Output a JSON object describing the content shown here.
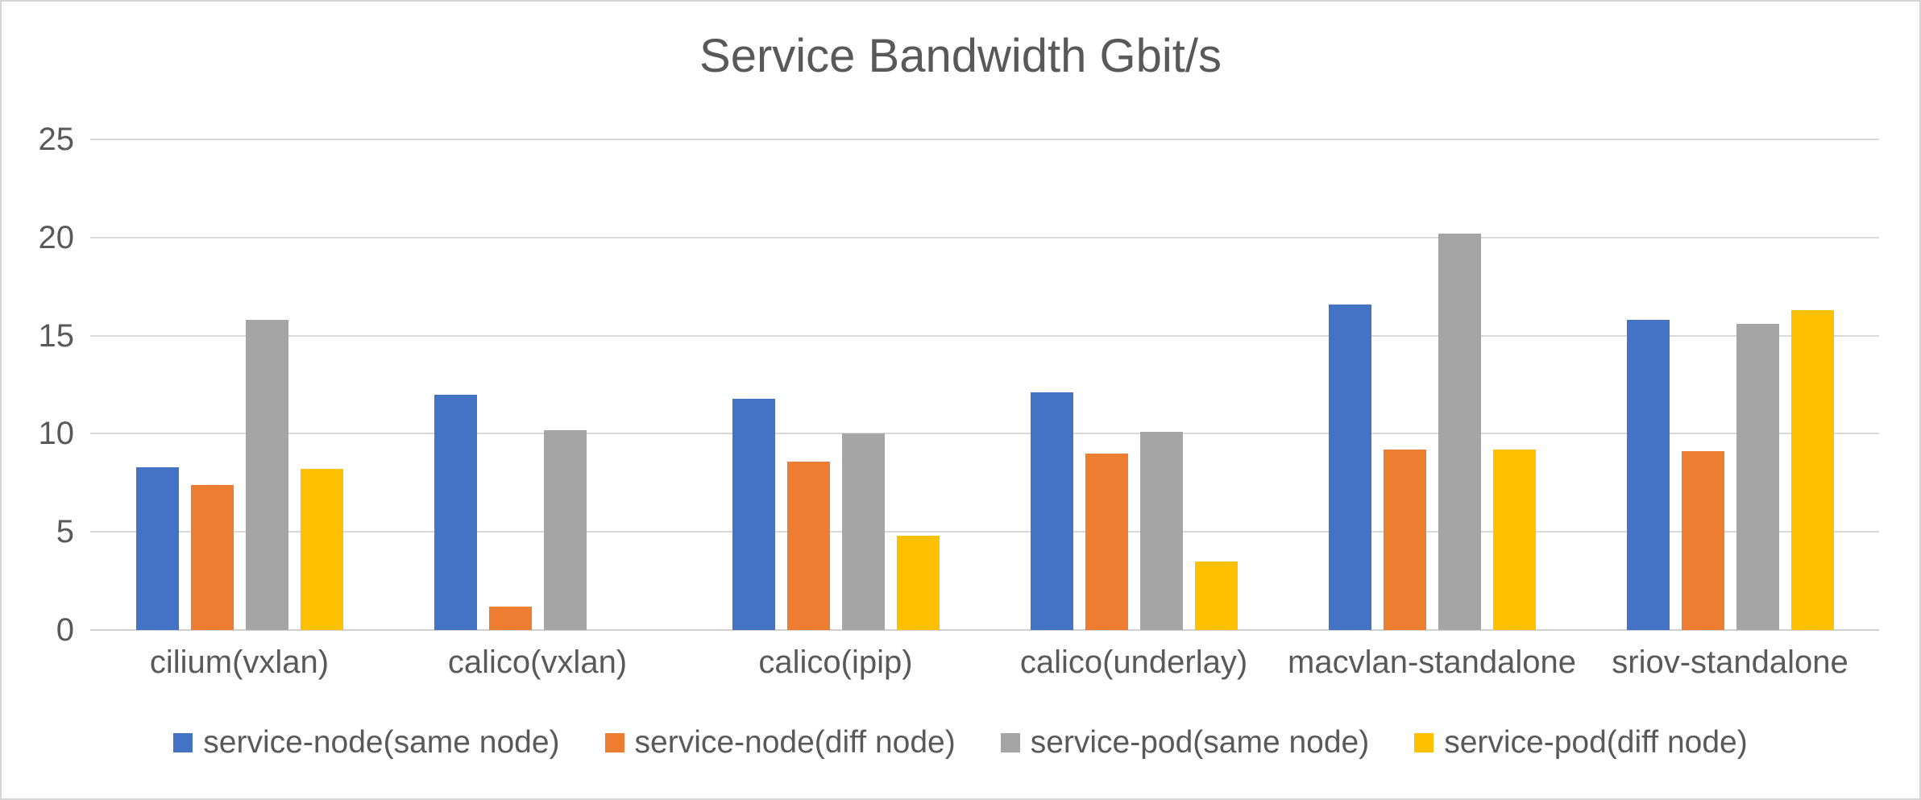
{
  "page": {
    "background": "#FFFFFF",
    "frame_border_color": "#D5D5D5"
  },
  "chart_data": {
    "type": "bar",
    "title": "Service Bandwidth Gbit/s",
    "categories": [
      "cilium(vxlan)",
      "calico(vxlan)",
      "calico(ipip)",
      "calico(underlay)",
      "macvlan-standalone",
      "sriov-standalone"
    ],
    "series": [
      {
        "name": "service-node(same node)",
        "color": "#4472C4",
        "values": [
          8.3,
          12.0,
          11.8,
          12.1,
          16.6,
          15.8
        ]
      },
      {
        "name": "service-node(diff node)",
        "color": "#ED7D31",
        "values": [
          7.4,
          1.2,
          8.6,
          9.0,
          9.2,
          9.1
        ]
      },
      {
        "name": "service-pod(same node)",
        "color": "#A5A5A5",
        "values": [
          15.8,
          10.2,
          10.0,
          10.1,
          20.2,
          15.6
        ]
      },
      {
        "name": "service-pod(diff node)",
        "color": "#FFC000",
        "values": [
          8.2,
          0,
          4.8,
          3.5,
          9.2,
          16.3
        ]
      }
    ],
    "xlabel": "",
    "ylabel": "",
    "y_ticks": [
      0,
      5,
      10,
      15,
      20,
      25
    ],
    "ylim": [
      0,
      25
    ],
    "grid": true,
    "legend_position": "bottom",
    "title_color": "#595959",
    "axis_text_color": "#595959",
    "gridline_color": "#D9D9D9",
    "baseline_color": "#D0D0D0"
  }
}
